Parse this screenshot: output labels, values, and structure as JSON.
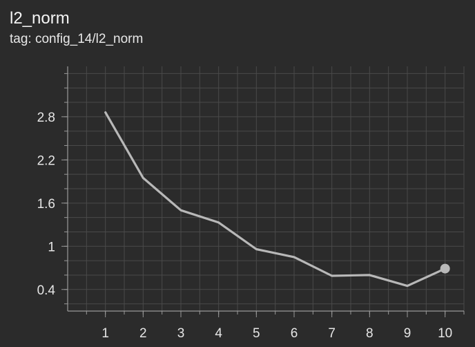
{
  "title": "l2_norm",
  "tag_line": "tag: config_14/l2_norm",
  "colors": {
    "background": "#2b2b2b",
    "grid": "#4a4a4a",
    "axis": "#9a9a9a",
    "series": "#b8b8b8",
    "text": "#e6e6e6"
  },
  "chart_data": {
    "type": "line",
    "title": "l2_norm",
    "xlabel": "",
    "ylabel": "",
    "x": [
      1,
      2,
      3,
      4,
      5,
      6,
      7,
      8,
      9,
      10
    ],
    "xticks": [
      1,
      2,
      3,
      4,
      5,
      6,
      7,
      8,
      9,
      10
    ],
    "yticks": [
      "0.4",
      "1",
      "1.6",
      "2.2",
      "2.8"
    ],
    "xlim": [
      0,
      10.5
    ],
    "ylim": [
      0.1,
      3.5
    ],
    "grid": true,
    "legend": "none",
    "series": [
      {
        "values": [
          2.86,
          1.95,
          1.5,
          1.33,
          0.96,
          0.85,
          0.59,
          0.6,
          0.45,
          0.69
        ],
        "end_marker": true
      }
    ]
  }
}
